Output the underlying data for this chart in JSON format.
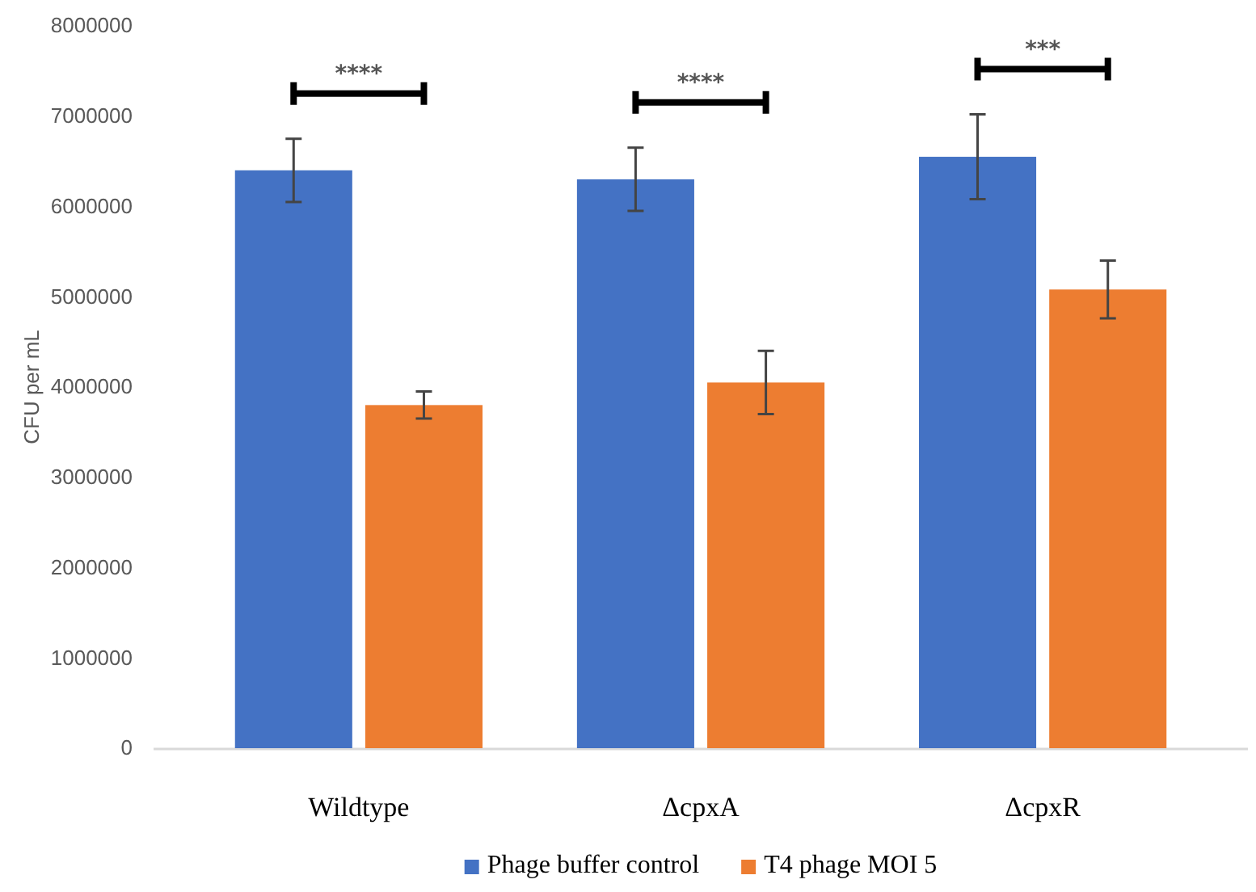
{
  "chart_data": {
    "type": "bar",
    "ylabel": "CFU per mL",
    "categories": [
      "Wildtype",
      "ΔcpxA",
      "ΔcpxR"
    ],
    "series": [
      {
        "name": "Phage buffer control",
        "color": "#4472c4",
        "values": [
          6400000,
          6300000,
          6550000
        ],
        "errors": [
          350000,
          350000,
          470000
        ]
      },
      {
        "name": "T4 phage MOI 5",
        "color": "#ed7d31",
        "values": [
          3800000,
          4050000,
          5080000
        ],
        "errors": [
          150000,
          350000,
          320000
        ]
      }
    ],
    "ylim": [
      0,
      8000000
    ],
    "yticks": [
      0,
      1000000,
      2000000,
      3000000,
      4000000,
      5000000,
      6000000,
      7000000,
      8000000
    ],
    "annotations": [
      "****",
      "****",
      "***"
    ],
    "legend": "bottom",
    "grid": false
  }
}
